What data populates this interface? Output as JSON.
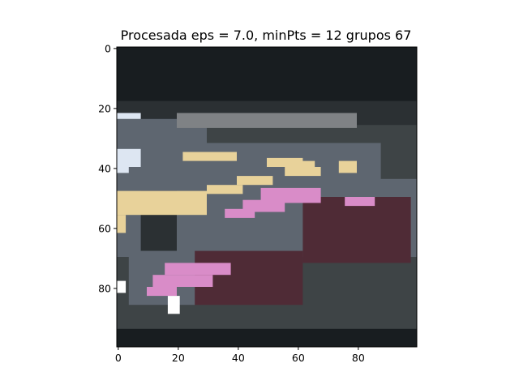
{
  "chart_data": {
    "type": "heatmap",
    "title": "Procesada eps = 7.0, minPts = 12 grupos 67",
    "xlabel": "",
    "ylabel": "",
    "xlim": [
      -0.5,
      99.5
    ],
    "ylim": [
      99.5,
      -0.5
    ],
    "x_ticks": [
      0,
      20,
      40,
      60,
      80
    ],
    "y_ticks": [
      0,
      20,
      40,
      60,
      80
    ],
    "x_tick_labels": [
      "0",
      "20",
      "40",
      "60",
      "80"
    ],
    "y_tick_labels": [
      "0",
      "20",
      "40",
      "60",
      "80"
    ],
    "grid": false,
    "legend": "none",
    "image_size": [
      100,
      100
    ],
    "palette": {
      "dark": "#181d20",
      "charcoal": "#2b3033",
      "slate": "#3e4446",
      "gray": "#5e6670",
      "light_gray": "#7f8285",
      "sand": "#e8d29a",
      "pink": "#d98cc8",
      "maroon": "#4f2b36",
      "pale_blue": "#dde6f2",
      "white": "#ffffff"
    },
    "regions": [
      {
        "color": "dark",
        "cells": [
          0,
          0,
          100,
          100
        ]
      },
      {
        "color": "charcoal",
        "cells": [
          0,
          18,
          100,
          82
        ]
      },
      {
        "color": "slate",
        "cells": [
          0,
          26,
          100,
          74
        ]
      },
      {
        "color": "gray",
        "cells": [
          0,
          24,
          30,
          46
        ]
      },
      {
        "color": "light_gray",
        "cells": [
          20,
          22,
          60,
          5
        ]
      },
      {
        "color": "gray",
        "cells": [
          18,
          32,
          70,
          28
        ]
      },
      {
        "color": "charcoal",
        "cells": [
          8,
          48,
          12,
          20
        ]
      },
      {
        "color": "gray",
        "cells": [
          28,
          44,
          72,
          26
        ]
      },
      {
        "color": "maroon",
        "cells": [
          62,
          50,
          36,
          22
        ]
      },
      {
        "color": "gray",
        "cells": [
          4,
          68,
          56,
          22
        ]
      },
      {
        "color": "maroon",
        "cells": [
          26,
          68,
          36,
          22
        ]
      },
      {
        "color": "slate",
        "cells": [
          0,
          86,
          100,
          14
        ]
      },
      {
        "color": "dark",
        "cells": [
          0,
          94,
          100,
          6
        ]
      },
      {
        "color": "sand",
        "cells": [
          0,
          48,
          30,
          8
        ]
      },
      {
        "color": "sand",
        "cells": [
          0,
          56,
          3,
          6
        ]
      },
      {
        "color": "sand",
        "cells": [
          22,
          35,
          18,
          3
        ]
      },
      {
        "color": "sand",
        "cells": [
          50,
          37,
          12,
          3
        ]
      },
      {
        "color": "sand",
        "cells": [
          56,
          40,
          12,
          3
        ]
      },
      {
        "color": "sand",
        "cells": [
          40,
          43,
          12,
          3
        ]
      },
      {
        "color": "sand",
        "cells": [
          30,
          46,
          12,
          3
        ]
      },
      {
        "color": "sand",
        "cells": [
          61,
          38,
          5,
          3
        ]
      },
      {
        "color": "sand",
        "cells": [
          74,
          38,
          6,
          4
        ]
      },
      {
        "color": "pink",
        "cells": [
          48,
          47,
          20,
          5
        ]
      },
      {
        "color": "pink",
        "cells": [
          42,
          51,
          14,
          4
        ]
      },
      {
        "color": "pink",
        "cells": [
          36,
          54,
          10,
          3
        ]
      },
      {
        "color": "pink",
        "cells": [
          76,
          50,
          10,
          3
        ]
      },
      {
        "color": "pink",
        "cells": [
          16,
          72,
          22,
          4
        ]
      },
      {
        "color": "pink",
        "cells": [
          12,
          76,
          20,
          4
        ]
      },
      {
        "color": "pink",
        "cells": [
          10,
          80,
          10,
          3
        ]
      },
      {
        "color": "pale_blue",
        "cells": [
          0,
          34,
          8,
          6
        ]
      },
      {
        "color": "pale_blue",
        "cells": [
          0,
          40,
          4,
          2
        ]
      },
      {
        "color": "pale_blue",
        "cells": [
          0,
          22,
          8,
          2
        ]
      },
      {
        "color": "white",
        "cells": [
          0,
          78,
          3,
          4
        ]
      },
      {
        "color": "white",
        "cells": [
          17,
          83,
          4,
          6
        ]
      }
    ]
  }
}
